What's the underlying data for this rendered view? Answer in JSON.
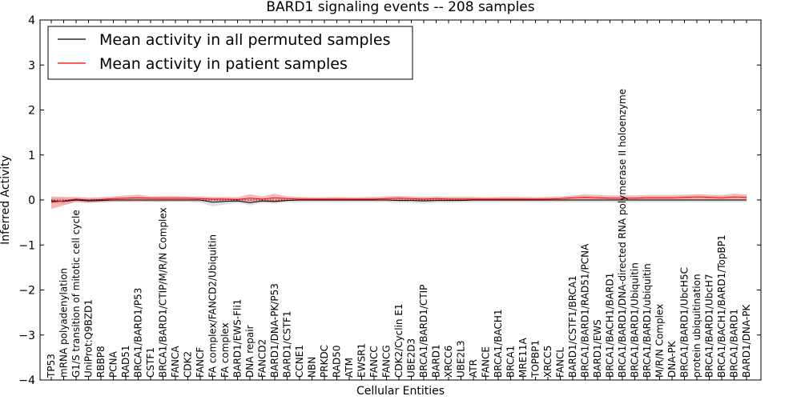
{
  "chart_data": {
    "type": "line",
    "title": "BARD1 signaling events -- 208 samples",
    "xlabel": "Cellular Entities",
    "ylabel": "Inferred Activity",
    "ylim": [
      -4,
      4
    ],
    "yticks": [
      -4,
      -3,
      -2,
      -1,
      0,
      1,
      2,
      3,
      4
    ],
    "ytick_labels": [
      "−4",
      "−3",
      "−2",
      "−1",
      "0",
      "1",
      "2",
      "3",
      "4"
    ],
    "grid": false,
    "legend_position": "top-left",
    "categories": [
      "TP53",
      "mRNA polyadenylation",
      "G1/S transition of mitotic cell cycle",
      "UniProt:Q9BZD1",
      "RBBP8",
      "PCNA",
      "RAD51",
      "BRCA1/BARD1/P53",
      "CSTF1",
      "BRCA1/BARD1/CTIP/M/R/N Complex",
      "FANCA",
      "CDK2",
      "FANCF",
      "FA complex/FANCD2/Ubiquitin",
      "FA complex",
      "BARD1/EWS-Fli1",
      "DNA repair",
      "FANCD2",
      "BARD1/DNA-PK/P53",
      "BARD1/CSTF1",
      "CCNE1",
      "NBN",
      "PRKDC",
      "RAD50",
      "ATM",
      "EWSR1",
      "FANCC",
      "FANCG",
      "CDK2/Cyclin E1",
      "UBE2D3",
      "BRCA1/BARD1/CTIP",
      "BARD1",
      "XRCC6",
      "UBE2L3",
      "ATR",
      "FANCE",
      "BRCA1/BACH1",
      "BRCA1",
      "MRE11A",
      "TOPBP1",
      "XRCC5",
      "FANCL",
      "BARD1/CSTF1/BRCA1",
      "BRCA1/BARD1/RAD51/PCNA",
      "BARD1/EWS",
      "BRCA1/BACH1/BARD1",
      "BRCA1/BARD1/DNA-directed RNA polymerase II holoenzyme",
      "BRCA1/BARD1/Ubiquitin",
      "BRCA1/BARD1/ubiquitin",
      "M/R/N Complex",
      "DNA-PK",
      "BRCA1/BARD1/UbcH5C",
      "protein ubiquitination",
      "BRCA1/BARD1/UbcH7",
      "BRCA1/BACH1/BARD1/TopBP1",
      "BRCA1/BARD1",
      "BARD1/DNA-PK"
    ],
    "series": [
      {
        "name": "Mean activity in all permuted samples",
        "color": "#000000",
        "values": [
          -0.02,
          -0.03,
          0.0,
          -0.02,
          -0.01,
          0.0,
          0.0,
          0.0,
          0.0,
          0.0,
          0.0,
          0.0,
          0.0,
          -0.05,
          -0.03,
          -0.02,
          -0.06,
          -0.02,
          -0.03,
          -0.01,
          0.0,
          0.0,
          0.0,
          0.0,
          0.0,
          0.0,
          0.0,
          0.0,
          -0.01,
          -0.01,
          -0.02,
          -0.01,
          -0.01,
          -0.01,
          0.0,
          0.0,
          0.0,
          0.0,
          0.0,
          0.0,
          0.0,
          0.0,
          0.0,
          0.0,
          0.0,
          0.0,
          0.0,
          0.0,
          0.0,
          0.0,
          0.0,
          0.0,
          0.0,
          0.0,
          0.0,
          0.0,
          0.0
        ],
        "band_lower": [
          -0.08,
          -0.1,
          -0.05,
          -0.07,
          -0.05,
          -0.04,
          -0.04,
          -0.04,
          -0.04,
          -0.04,
          -0.04,
          -0.04,
          -0.06,
          -0.14,
          -0.1,
          -0.06,
          -0.12,
          -0.07,
          -0.08,
          -0.05,
          -0.05,
          -0.05,
          -0.05,
          -0.05,
          -0.05,
          -0.05,
          -0.05,
          -0.05,
          -0.06,
          -0.06,
          -0.08,
          -0.06,
          -0.06,
          -0.06,
          -0.05,
          -0.05,
          -0.05,
          -0.05,
          -0.05,
          -0.05,
          -0.05,
          -0.05,
          -0.05,
          -0.05,
          -0.05,
          -0.05,
          -0.05,
          -0.05,
          -0.05,
          -0.05,
          -0.05,
          -0.05,
          -0.05,
          -0.05,
          -0.05,
          -0.05,
          -0.05
        ],
        "band_upper": [
          0.05,
          0.04,
          0.05,
          0.04,
          0.05,
          0.05,
          0.05,
          0.05,
          0.05,
          0.05,
          0.05,
          0.05,
          0.05,
          0.04,
          0.04,
          0.05,
          0.03,
          0.05,
          0.04,
          0.05,
          0.05,
          0.05,
          0.05,
          0.05,
          0.05,
          0.05,
          0.05,
          0.05,
          0.05,
          0.05,
          0.04,
          0.05,
          0.05,
          0.05,
          0.05,
          0.05,
          0.05,
          0.05,
          0.05,
          0.05,
          0.05,
          0.05,
          0.05,
          0.05,
          0.05,
          0.05,
          0.05,
          0.05,
          0.05,
          0.05,
          0.05,
          0.05,
          0.05,
          0.05,
          0.05,
          0.05,
          0.05
        ]
      },
      {
        "name": "Mean activity in patient samples",
        "color": "#ff0000",
        "values": [
          -0.05,
          -0.02,
          0.02,
          0.0,
          0.01,
          0.03,
          0.04,
          0.05,
          0.04,
          0.04,
          0.04,
          0.04,
          0.03,
          0.02,
          0.02,
          0.01,
          0.04,
          0.02,
          0.05,
          0.03,
          0.02,
          0.02,
          0.02,
          0.02,
          0.02,
          0.02,
          0.02,
          0.03,
          0.04,
          0.03,
          0.02,
          0.03,
          0.02,
          0.02,
          0.02,
          0.02,
          0.02,
          0.02,
          0.02,
          0.02,
          0.02,
          0.03,
          0.05,
          0.06,
          0.05,
          0.04,
          0.04,
          0.04,
          0.05,
          0.05,
          0.05,
          0.06,
          0.07,
          0.06,
          0.05,
          0.07,
          0.06
        ],
        "band_lower": [
          -0.2,
          -0.12,
          -0.04,
          -0.06,
          -0.05,
          -0.04,
          -0.04,
          -0.03,
          -0.04,
          -0.04,
          -0.03,
          -0.03,
          -0.03,
          -0.03,
          -0.03,
          -0.04,
          -0.05,
          -0.04,
          -0.06,
          -0.02,
          -0.02,
          -0.02,
          -0.02,
          -0.02,
          -0.02,
          -0.02,
          -0.02,
          -0.02,
          -0.02,
          -0.02,
          -0.03,
          -0.02,
          -0.02,
          -0.02,
          -0.02,
          -0.02,
          -0.02,
          -0.02,
          -0.02,
          -0.02,
          -0.02,
          -0.02,
          -0.01,
          -0.01,
          -0.01,
          -0.01,
          -0.01,
          -0.01,
          -0.01,
          -0.01,
          -0.01,
          -0.01,
          0.0,
          -0.01,
          -0.01,
          0.0,
          -0.01
        ],
        "band_upper": [
          0.08,
          0.07,
          0.07,
          0.05,
          0.06,
          0.08,
          0.1,
          0.12,
          0.08,
          0.09,
          0.09,
          0.08,
          0.08,
          0.07,
          0.07,
          0.06,
          0.13,
          0.08,
          0.14,
          0.08,
          0.07,
          0.06,
          0.06,
          0.07,
          0.06,
          0.06,
          0.07,
          0.08,
          0.09,
          0.08,
          0.07,
          0.08,
          0.07,
          0.07,
          0.07,
          0.06,
          0.07,
          0.07,
          0.07,
          0.06,
          0.07,
          0.08,
          0.1,
          0.13,
          0.11,
          0.1,
          0.1,
          0.1,
          0.11,
          0.11,
          0.11,
          0.12,
          0.13,
          0.12,
          0.11,
          0.14,
          0.12
        ]
      }
    ]
  },
  "colors": {
    "permuted_band": "#c8c8c8",
    "patient_band": "#f08080",
    "axis": "#000000"
  }
}
